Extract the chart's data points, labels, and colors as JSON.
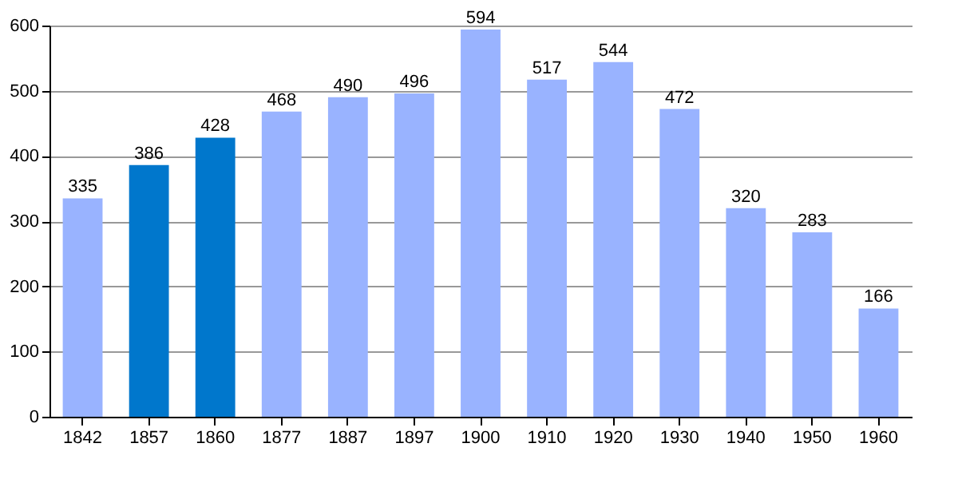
{
  "chart_data": {
    "type": "bar",
    "categories": [
      "1842",
      "1857",
      "1860",
      "1877",
      "1887",
      "1897",
      "1900",
      "1910",
      "1920",
      "1930",
      "1940",
      "1950",
      "1960"
    ],
    "values": [
      335,
      386,
      428,
      468,
      490,
      496,
      594,
      517,
      544,
      472,
      320,
      283,
      166
    ],
    "colors": [
      "#99b3ff",
      "#0077cc",
      "#0077cc",
      "#99b3ff",
      "#99b3ff",
      "#99b3ff",
      "#99b3ff",
      "#99b3ff",
      "#99b3ff",
      "#99b3ff",
      "#99b3ff",
      "#99b3ff",
      "#99b3ff"
    ],
    "ylim": [
      0,
      600
    ],
    "yticks": [
      0,
      100,
      200,
      300,
      400,
      500,
      600
    ],
    "grid": "y",
    "data_labels": true
  }
}
